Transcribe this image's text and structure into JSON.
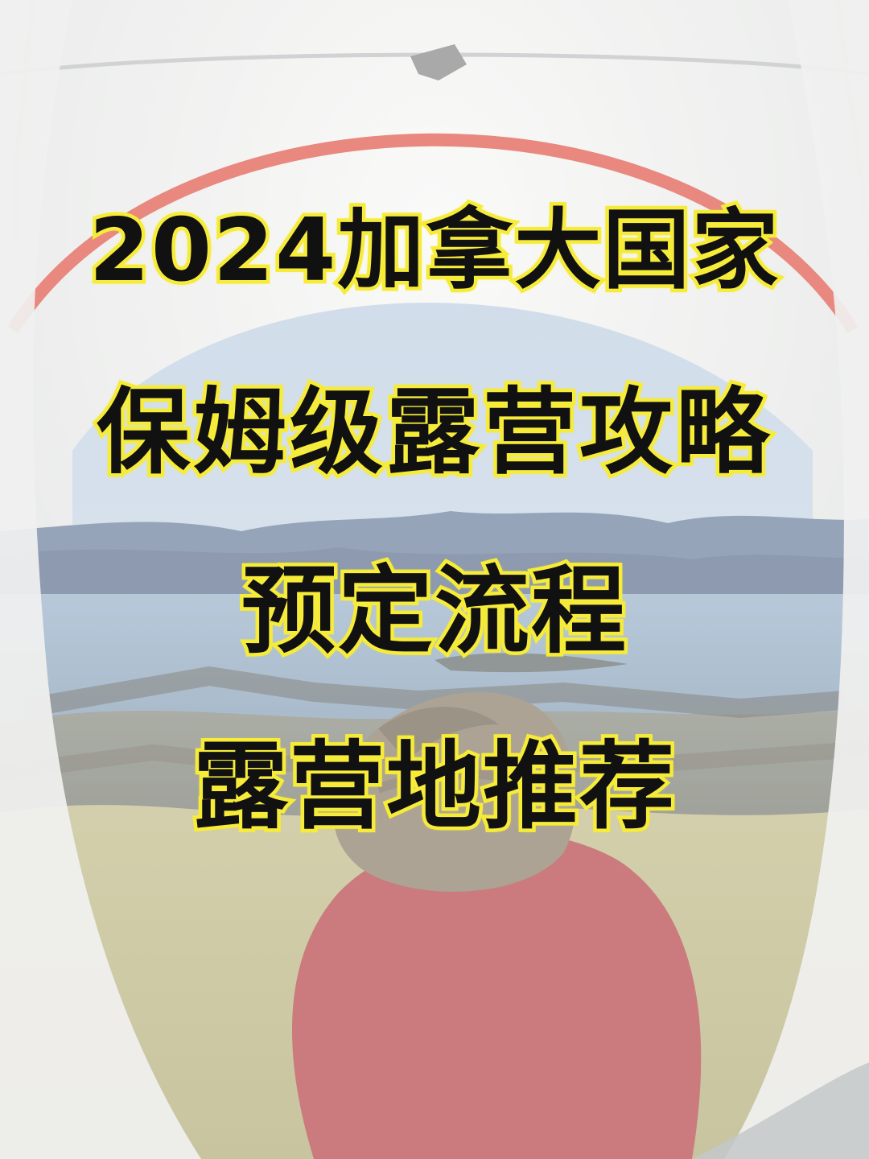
{
  "image": {
    "subject": "tent-view-lake-camping"
  },
  "headline": {
    "line1": "2024加拿大国家",
    "line2": "保姆级露营攻略",
    "line3": "预定流程",
    "line4": "露营地推荐"
  },
  "colors": {
    "text_fill": "#111111",
    "text_outline": "#f6ec3c",
    "tent_arch": "#e05a4d",
    "shirt": "#b7484b",
    "water": "#8fa8c0",
    "mountains": "#5f7391"
  }
}
